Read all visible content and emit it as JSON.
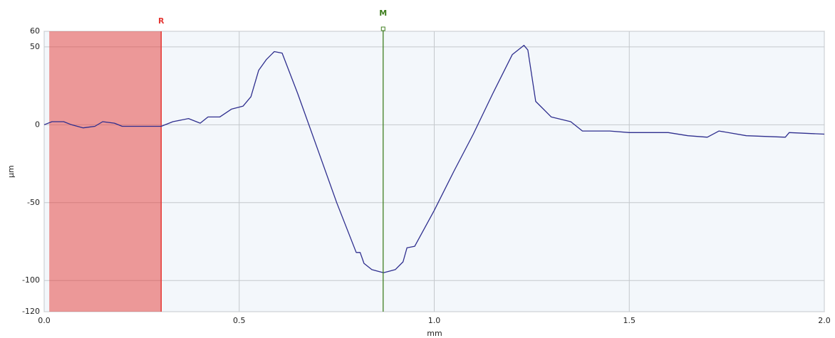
{
  "chart_data": {
    "type": "line",
    "x_label": "mm",
    "y_label": "µm",
    "x": [
      0,
      0.02,
      0.05,
      0.07,
      0.1,
      0.13,
      0.15,
      0.18,
      0.2,
      0.25,
      0.3,
      0.33,
      0.37,
      0.4,
      0.42,
      0.45,
      0.48,
      0.51,
      0.53,
      0.55,
      0.57,
      0.59,
      0.61,
      0.65,
      0.7,
      0.75,
      0.8,
      0.81,
      0.82,
      0.84,
      0.87,
      0.9,
      0.92,
      0.93,
      0.95,
      1.0,
      1.05,
      1.1,
      1.15,
      1.2,
      1.23,
      1.24,
      1.26,
      1.3,
      1.35,
      1.38,
      1.45,
      1.5,
      1.6,
      1.65,
      1.7,
      1.73,
      1.8,
      1.9,
      1.91,
      2.0
    ],
    "values": [
      0,
      2,
      2,
      0,
      -2,
      -1,
      2,
      1,
      -1,
      -1,
      -1,
      2,
      4,
      1,
      5,
      5,
      10,
      12,
      18,
      35,
      42,
      47,
      46,
      20,
      -15,
      -50,
      -82,
      -82,
      -89,
      -93,
      -95,
      -93,
      -88,
      -79,
      -78,
      -55,
      -30,
      -6,
      20,
      45,
      51,
      48,
      15,
      5,
      2,
      -4,
      -4,
      -5,
      -5,
      -7,
      -8,
      -4,
      -7,
      -8,
      -5,
      -6
    ],
    "color": "#2e2e8e",
    "xlim": [
      0,
      2
    ],
    "ylim": [
      -120,
      60
    ],
    "xticks": [
      {
        "value": 0,
        "label": "0.0"
      },
      0.5,
      {
        "value": 1,
        "label": "1.0"
      },
      1.5,
      {
        "value": 2,
        "label": "2.0"
      }
    ],
    "yticks": [
      60,
      50,
      0,
      -50,
      -100,
      -120
    ],
    "grid": true,
    "regions": [
      {
        "label": "R",
        "x": [
          0.013,
          0.3
        ],
        "color": "#e53935"
      }
    ],
    "markers": [
      {
        "label": "M",
        "x": 0.869,
        "color": "#3f7f1f"
      }
    ]
  }
}
